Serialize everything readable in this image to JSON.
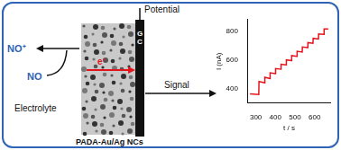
{
  "diagram": {
    "product": "NO⁺",
    "analyte": "NO",
    "electron": "e⁻",
    "medium": "Electrolyte",
    "material": "PADA-Au/Ag NCs",
    "electrode": "GC",
    "input": "Potential",
    "output": "Signal"
  },
  "chart_data": {
    "type": "line",
    "x": [
      270,
      315,
      316,
      345,
      346,
      372,
      373,
      400,
      401,
      428,
      429,
      455,
      456,
      482,
      483,
      510,
      511,
      537,
      538,
      565,
      566,
      592,
      593,
      620,
      621,
      648,
      649,
      670
    ],
    "values": [
      365,
      360,
      450,
      440,
      480,
      470,
      510,
      505,
      540,
      535,
      570,
      565,
      600,
      595,
      630,
      625,
      660,
      655,
      690,
      685,
      720,
      715,
      750,
      745,
      780,
      778,
      815,
      815
    ],
    "color": "#e3141c",
    "xlim": [
      260,
      680
    ],
    "ylim": [
      300,
      880
    ],
    "xticks": [
      300,
      400,
      500,
      600
    ],
    "yticks": [
      400,
      600,
      800
    ],
    "xlabel": "t / s",
    "ylabel": "I (nA)",
    "grid": false
  }
}
